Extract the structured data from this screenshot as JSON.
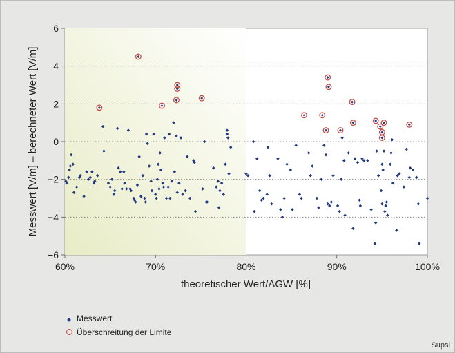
{
  "chart_data": {
    "type": "scatter",
    "xlabel": "theoretischer Wert/AGW [%]",
    "ylabel": "Messwert [V/m] – berechneter Wert [V/m]",
    "xlim": [
      60,
      100
    ],
    "ylim": [
      -6,
      6
    ],
    "x_ticks": [
      "60%",
      "70%",
      "80%",
      "90%",
      "100%"
    ],
    "y_ticks": [
      "6",
      "4",
      "2",
      "0",
      "−2",
      "−4",
      "−6"
    ],
    "y_tick_values": [
      6,
      4,
      2,
      0,
      -2,
      -4,
      -6
    ],
    "x_tick_values": [
      60,
      70,
      80,
      90,
      100
    ],
    "grid": "horizontal dotted",
    "highlight_range_x": [
      60,
      80
    ],
    "legend_position": "bottom-left",
    "series": [
      {
        "name": "Messwert",
        "marker": "dot",
        "color": "#23397f",
        "points": [
          [
            60.1,
            -2.1
          ],
          [
            60.2,
            -2.2
          ],
          [
            60.4,
            -1.9
          ],
          [
            60.5,
            -1.5
          ],
          [
            60.6,
            -1.3
          ],
          [
            60.7,
            -0.7
          ],
          [
            60.9,
            -1.2
          ],
          [
            61.0,
            -2.7
          ],
          [
            61.3,
            -2.4
          ],
          [
            61.6,
            -1.9
          ],
          [
            61.7,
            -1.8
          ],
          [
            62.1,
            -2.9
          ],
          [
            62.4,
            -1.6
          ],
          [
            62.6,
            -2.0
          ],
          [
            62.8,
            -1.9
          ],
          [
            63.0,
            -1.6
          ],
          [
            63.2,
            -2.2
          ],
          [
            63.3,
            -2.1
          ],
          [
            63.6,
            -1.8
          ],
          [
            64.2,
            0.8
          ],
          [
            64.3,
            -0.5
          ],
          [
            64.8,
            -2.2
          ],
          [
            65.0,
            -2.4
          ],
          [
            65.2,
            -2.0
          ],
          [
            65.4,
            -2.8
          ],
          [
            65.5,
            -2.6
          ],
          [
            65.8,
            0.7
          ],
          [
            65.9,
            -1.4
          ],
          [
            66.1,
            -1.6
          ],
          [
            66.3,
            -2.5
          ],
          [
            66.5,
            -1.6
          ],
          [
            66.6,
            -2.2
          ],
          [
            66.8,
            -2.5
          ],
          [
            67.0,
            0.6
          ],
          [
            67.2,
            -2.5
          ],
          [
            67.3,
            -2.6
          ],
          [
            67.6,
            -3.0
          ],
          [
            67.7,
            -3.1
          ],
          [
            67.8,
            -3.2
          ],
          [
            68.0,
            -2.3
          ],
          [
            68.2,
            -0.8
          ],
          [
            68.4,
            -2.9
          ],
          [
            68.6,
            -1.8
          ],
          [
            68.8,
            -3.0
          ],
          [
            68.9,
            -3.2
          ],
          [
            69.0,
            0.4
          ],
          [
            69.1,
            -0.1
          ],
          [
            69.3,
            -1.3
          ],
          [
            69.5,
            -2.1
          ],
          [
            69.6,
            -2.6
          ],
          [
            69.8,
            0.4
          ],
          [
            70.0,
            -2.8
          ],
          [
            70.1,
            -3.0
          ],
          [
            70.2,
            -2.0
          ],
          [
            70.3,
            -1.2
          ],
          [
            70.4,
            -2.5
          ],
          [
            70.5,
            -0.6
          ],
          [
            70.6,
            -1.5
          ],
          [
            70.8,
            -2.2
          ],
          [
            70.9,
            -2.4
          ],
          [
            71.0,
            0.2
          ],
          [
            71.2,
            -3.0
          ],
          [
            71.4,
            -2.4
          ],
          [
            71.5,
            0.4
          ],
          [
            71.6,
            -3.0
          ],
          [
            71.8,
            -2.1
          ],
          [
            72.0,
            1.0
          ],
          [
            72.1,
            -1.6
          ],
          [
            72.3,
            0.3
          ],
          [
            72.4,
            -2.7
          ],
          [
            72.6,
            -2.2
          ],
          [
            72.8,
            0.2
          ],
          [
            73.0,
            -2.8
          ],
          [
            73.3,
            -2.6
          ],
          [
            73.5,
            -0.8
          ],
          [
            73.8,
            -3.0
          ],
          [
            74.2,
            -1.0
          ],
          [
            74.3,
            -1.1
          ],
          [
            74.4,
            -3.7
          ],
          [
            75.2,
            -2.5
          ],
          [
            75.4,
            0.0
          ],
          [
            75.6,
            -3.2
          ],
          [
            75.7,
            -3.2
          ],
          [
            76.4,
            -1.4
          ],
          [
            76.7,
            -2.4
          ],
          [
            76.9,
            -2.1
          ],
          [
            77.0,
            -3.5
          ],
          [
            77.1,
            -2.6
          ],
          [
            77.3,
            -2.2
          ],
          [
            77.5,
            -2.8
          ],
          [
            77.7,
            -1.2
          ],
          [
            77.9,
            0.6
          ],
          [
            77.9,
            0.4
          ],
          [
            78.0,
            0.2
          ],
          [
            78.1,
            -1.7
          ],
          [
            78.3,
            -0.3
          ],
          [
            80.0,
            -1.7
          ],
          [
            80.2,
            -1.8
          ],
          [
            80.8,
            0.0
          ],
          [
            80.9,
            -3.7
          ],
          [
            81.2,
            -0.9
          ],
          [
            81.5,
            -2.6
          ],
          [
            81.7,
            -3.1
          ],
          [
            81.9,
            -3.0
          ],
          [
            82.3,
            -2.8
          ],
          [
            82.4,
            -0.3
          ],
          [
            82.6,
            -1.8
          ],
          [
            82.8,
            -3.3
          ],
          [
            83.5,
            -0.9
          ],
          [
            83.8,
            -3.6
          ],
          [
            84.0,
            -4.0
          ],
          [
            84.2,
            -3.0
          ],
          [
            84.5,
            -1.2
          ],
          [
            84.9,
            -1.5
          ],
          [
            85.1,
            -3.6
          ],
          [
            85.5,
            -0.2
          ],
          [
            85.9,
            -2.8
          ],
          [
            86.1,
            -3.0
          ],
          [
            86.9,
            -0.6
          ],
          [
            87.1,
            -1.8
          ],
          [
            87.3,
            -1.3
          ],
          [
            87.8,
            -3.0
          ],
          [
            88.0,
            -3.5
          ],
          [
            88.3,
            -2.0
          ],
          [
            88.6,
            -0.2
          ],
          [
            88.8,
            -0.7
          ],
          [
            89.0,
            -3.3
          ],
          [
            89.2,
            -3.4
          ],
          [
            89.4,
            -3.2
          ],
          [
            89.6,
            -1.8
          ],
          [
            90.1,
            -3.4
          ],
          [
            90.3,
            -3.7
          ],
          [
            90.5,
            -2.0
          ],
          [
            90.6,
            0.2
          ],
          [
            90.8,
            -1.0
          ],
          [
            90.9,
            -3.9
          ],
          [
            91.3,
            -0.6
          ],
          [
            91.8,
            -4.6
          ],
          [
            92.0,
            -0.9
          ],
          [
            92.3,
            -1.1
          ],
          [
            92.5,
            -3.1
          ],
          [
            92.6,
            -3.4
          ],
          [
            92.8,
            -0.9
          ],
          [
            93.0,
            -1.0
          ],
          [
            93.4,
            -1.0
          ],
          [
            93.8,
            -3.6
          ],
          [
            94.2,
            -5.4
          ],
          [
            94.3,
            -4.3
          ],
          [
            94.4,
            -0.5
          ],
          [
            94.6,
            -1.8
          ],
          [
            94.9,
            -2.6
          ],
          [
            95.0,
            -3.3
          ],
          [
            95.0,
            -1.2
          ],
          [
            95.1,
            -1.5
          ],
          [
            95.2,
            -0.5
          ],
          [
            95.3,
            -3.7
          ],
          [
            95.4,
            -3.4
          ],
          [
            95.5,
            -3.2
          ],
          [
            95.6,
            -3.9
          ],
          [
            95.9,
            -1.2
          ],
          [
            96.0,
            -0.6
          ],
          [
            96.1,
            0.1
          ],
          [
            96.2,
            -2.2
          ],
          [
            96.6,
            -4.7
          ],
          [
            96.7,
            -1.8
          ],
          [
            96.9,
            -1.7
          ],
          [
            97.4,
            -2.4
          ],
          [
            97.7,
            -0.4
          ],
          [
            98.0,
            -1.9
          ],
          [
            98.1,
            -1.4
          ],
          [
            98.4,
            -1.5
          ],
          [
            98.8,
            -1.9
          ],
          [
            99.0,
            -3.3
          ],
          [
            99.1,
            -5.4
          ],
          [
            100.0,
            -3.0
          ]
        ]
      },
      {
        "name": "Überschreitung der Limite",
        "marker": "circle",
        "color": "#c84a45",
        "points": [
          [
            63.8,
            1.8
          ],
          [
            68.1,
            4.5
          ],
          [
            70.7,
            1.9
          ],
          [
            72.3,
            2.2
          ],
          [
            72.4,
            3.0
          ],
          [
            72.4,
            2.8
          ],
          [
            75.1,
            2.3
          ],
          [
            86.4,
            1.4
          ],
          [
            88.4,
            1.4
          ],
          [
            88.8,
            0.6
          ],
          [
            89.0,
            3.4
          ],
          [
            89.1,
            2.9
          ],
          [
            90.4,
            0.6
          ],
          [
            91.7,
            2.1
          ],
          [
            91.8,
            1.0
          ],
          [
            94.3,
            1.1
          ],
          [
            94.8,
            0.8
          ],
          [
            95.0,
            0.5
          ],
          [
            95.0,
            0.2
          ],
          [
            95.2,
            1.0
          ],
          [
            98.0,
            0.9
          ]
        ]
      }
    ]
  },
  "credit": "Supsi"
}
